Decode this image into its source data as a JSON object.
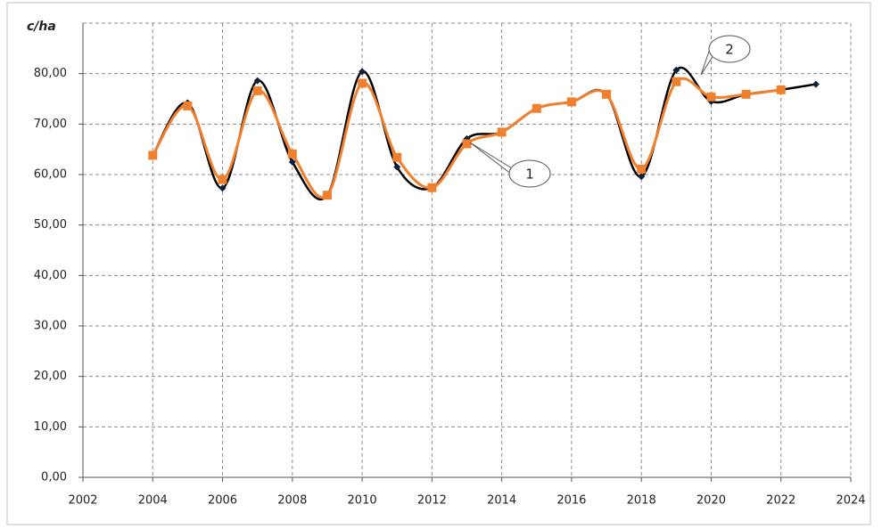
{
  "chart_data": {
    "type": "line",
    "y_label": "c/ha",
    "x": [
      2004,
      2005,
      2006,
      2007,
      2008,
      2009,
      2010,
      2011,
      2012,
      2013,
      2014,
      2015,
      2016,
      2017,
      2018,
      2019,
      2020,
      2021,
      2022,
      2023
    ],
    "series": [
      {
        "color": "#000000",
        "marker": "diamond",
        "values": [
          63.8,
          74.2,
          57.3,
          78.6,
          62.5,
          55.9,
          80.4,
          61.5,
          57.4,
          67.1,
          68.4,
          73.1,
          74.4,
          75.9,
          59.6,
          80.7,
          74.5,
          75.9,
          76.8,
          77.9
        ]
      },
      {
        "color": "#f07f2e",
        "marker": "square",
        "values": [
          63.8,
          73.6,
          59.0,
          76.6,
          64.1,
          55.9,
          78.1,
          63.4,
          57.4,
          66.1,
          68.4,
          73.1,
          74.4,
          75.9,
          61.1,
          78.4,
          75.4,
          75.9,
          76.8,
          null
        ]
      }
    ],
    "annotations": [
      "1",
      "2"
    ],
    "xlim": [
      2002,
      2024
    ],
    "xticks": [
      2002,
      2004,
      2006,
      2008,
      2010,
      2012,
      2014,
      2016,
      2018,
      2020,
      2022,
      2024
    ],
    "ylim": [
      0,
      90
    ],
    "yticks": [
      {
        "value": 0,
        "label": "0,00"
      },
      {
        "value": 10,
        "label": "10,00"
      },
      {
        "value": 20,
        "label": "20,00"
      },
      {
        "value": 30,
        "label": "30,00"
      },
      {
        "value": 40,
        "label": "40,00"
      },
      {
        "value": 50,
        "label": "50,00"
      },
      {
        "value": 60,
        "label": "60,00"
      },
      {
        "value": 70,
        "label": "70,00"
      },
      {
        "value": 80,
        "label": "80,00"
      }
    ],
    "grid": true
  }
}
